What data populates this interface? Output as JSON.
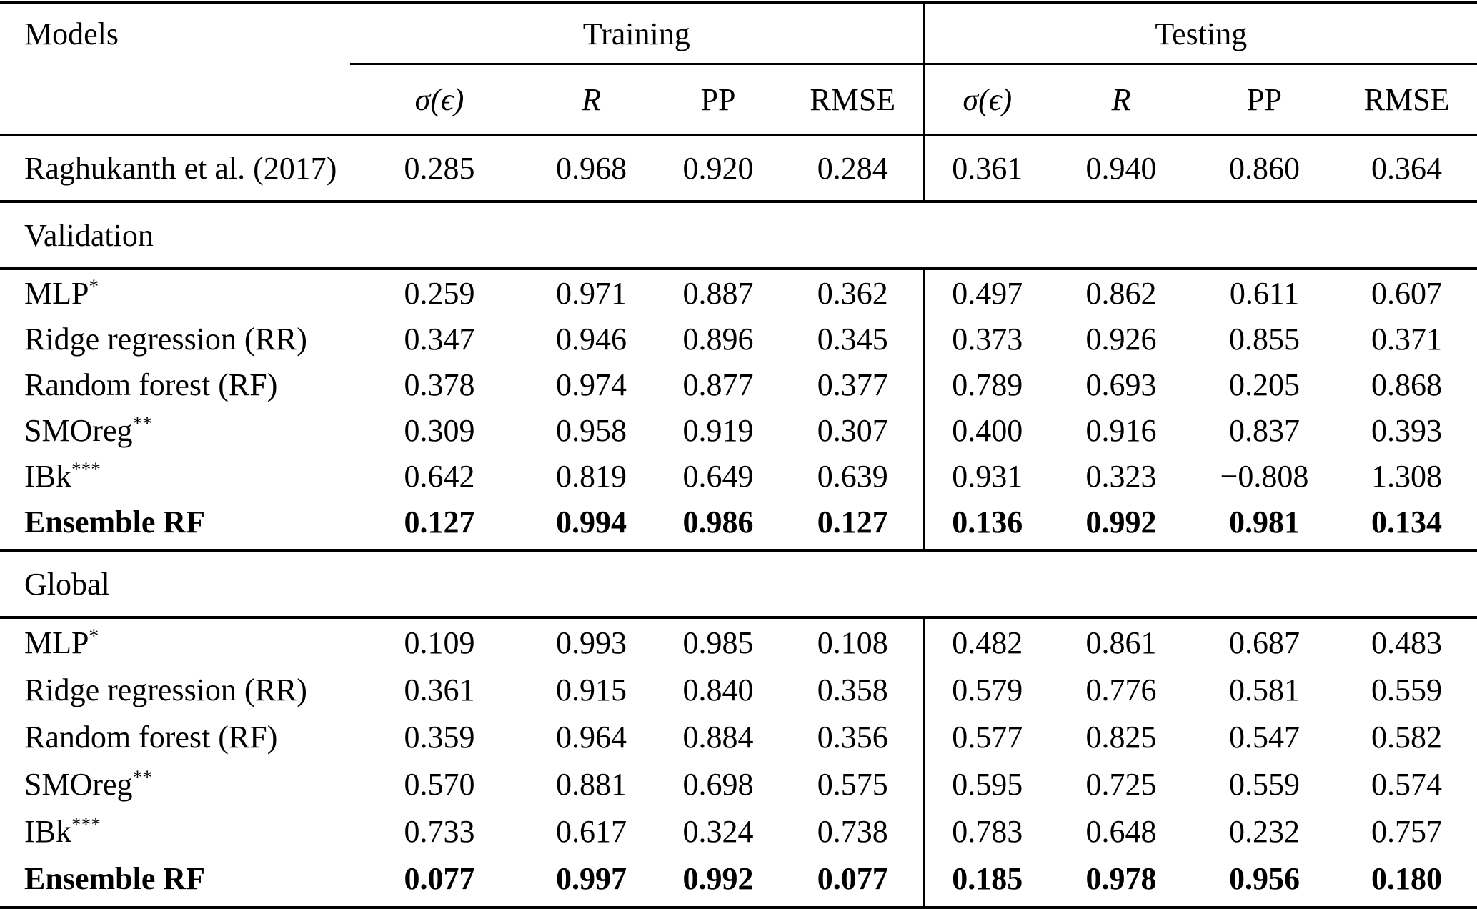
{
  "table": {
    "models_header": "Models",
    "groups": {
      "training": "Training",
      "testing": "Testing"
    },
    "subheaders": [
      "σ(ϵ)",
      "R",
      "PP",
      "RMSE",
      "σ(ϵ)",
      "R",
      "PP",
      "RMSE"
    ],
    "baseline_row": {
      "model": "Raghukanth et al. (2017)",
      "values": [
        "0.285",
        "0.968",
        "0.920",
        "0.284",
        "0.361",
        "0.940",
        "0.860",
        "0.364"
      ]
    },
    "sections": [
      {
        "label": "Validation",
        "rows": [
          {
            "model": "MLP",
            "sup": "*",
            "bold": false,
            "values": [
              "0.259",
              "0.971",
              "0.887",
              "0.362",
              "0.497",
              "0.862",
              "0.611",
              "0.607"
            ]
          },
          {
            "model": "Ridge regression (RR)",
            "sup": "",
            "bold": false,
            "values": [
              "0.347",
              "0.946",
              "0.896",
              "0.345",
              "0.373",
              "0.926",
              "0.855",
              "0.371"
            ]
          },
          {
            "model": "Random forest (RF)",
            "sup": "",
            "bold": false,
            "values": [
              "0.378",
              "0.974",
              "0.877",
              "0.377",
              "0.789",
              "0.693",
              "0.205",
              "0.868"
            ]
          },
          {
            "model": "SMOreg",
            "sup": "**",
            "bold": false,
            "values": [
              "0.309",
              "0.958",
              "0.919",
              "0.307",
              "0.400",
              "0.916",
              "0.837",
              "0.393"
            ]
          },
          {
            "model": "IBk",
            "sup": "***",
            "bold": false,
            "values": [
              "0.642",
              "0.819",
              "0.649",
              "0.639",
              "0.931",
              "0.323",
              "−0.808",
              "1.308"
            ]
          },
          {
            "model": "Ensemble RF",
            "sup": "",
            "bold": true,
            "values": [
              "0.127",
              "0.994",
              "0.986",
              "0.127",
              "0.136",
              "0.992",
              "0.981",
              "0.134"
            ]
          }
        ]
      },
      {
        "label": "Global",
        "rows": [
          {
            "model": "MLP",
            "sup": "*",
            "bold": false,
            "values": [
              "0.109",
              "0.993",
              "0.985",
              "0.108",
              "0.482",
              "0.861",
              "0.687",
              "0.483"
            ]
          },
          {
            "model": "Ridge regression (RR)",
            "sup": "",
            "bold": false,
            "values": [
              "0.361",
              "0.915",
              "0.840",
              "0.358",
              "0.579",
              "0.776",
              "0.581",
              "0.559"
            ]
          },
          {
            "model": "Random forest (RF)",
            "sup": "",
            "bold": false,
            "values": [
              "0.359",
              "0.964",
              "0.884",
              "0.356",
              "0.577",
              "0.825",
              "0.547",
              "0.582"
            ]
          },
          {
            "model": "SMOreg",
            "sup": "**",
            "bold": false,
            "values": [
              "0.570",
              "0.881",
              "0.698",
              "0.575",
              "0.595",
              "0.725",
              "0.559",
              "0.574"
            ]
          },
          {
            "model": "IBk",
            "sup": "***",
            "bold": false,
            "values": [
              "0.733",
              "0.617",
              "0.324",
              "0.738",
              "0.783",
              "0.648",
              "0.232",
              "0.757"
            ]
          },
          {
            "model": "Ensemble RF",
            "sup": "",
            "bold": true,
            "values": [
              "0.077",
              "0.997",
              "0.992",
              "0.077",
              "0.185",
              "0.978",
              "0.956",
              "0.180"
            ]
          }
        ]
      }
    ]
  }
}
